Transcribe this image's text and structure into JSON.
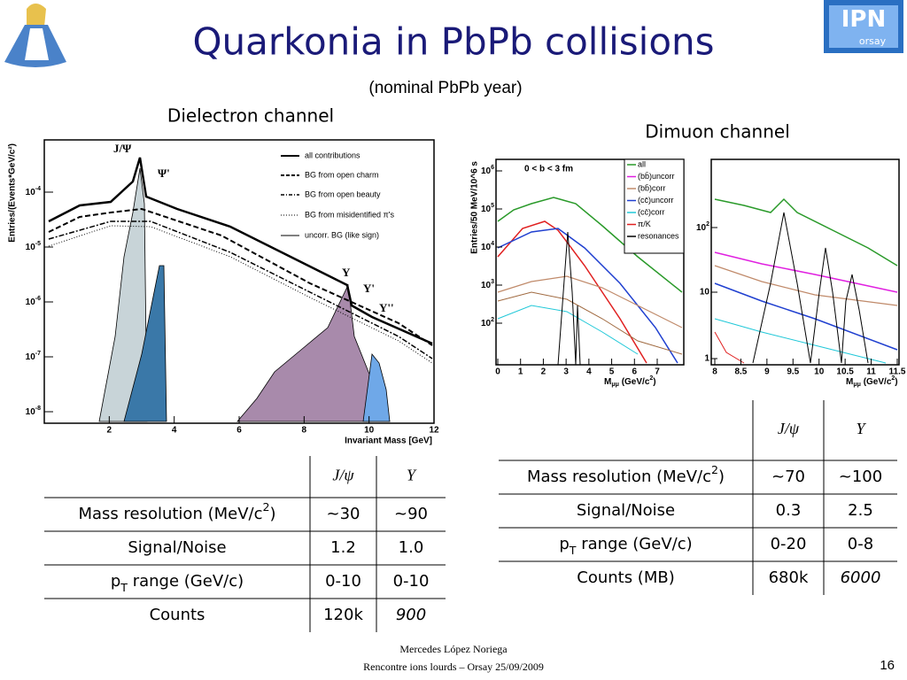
{
  "title": "Quarkonia in PbPb collisions",
  "subtitle": "(nominal PbPb year)",
  "logo": {
    "main": "IPN",
    "sub": "orsay"
  },
  "dielectron": {
    "label": "Dielectron channel",
    "plot": {
      "ylabel": "Entries/(Events*GeV/c²)",
      "xlabel": "Invariant Mass [GeV]",
      "xticks": [
        "2",
        "4",
        "6",
        "8",
        "10",
        "12"
      ],
      "yticks": [
        [
          {
            "text": "10"
          },
          {
            "text": "-8",
            "style": "sup"
          }
        ],
        [
          {
            "text": "10"
          },
          {
            "text": "-7",
            "style": "sup"
          }
        ],
        [
          {
            "text": "10"
          },
          {
            "text": "-6",
            "style": "sup"
          }
        ],
        [
          {
            "text": "10"
          },
          {
            "text": "-5",
            "style": "sup"
          }
        ],
        [
          {
            "text": "10"
          },
          {
            "text": "-4",
            "style": "sup"
          }
        ]
      ],
      "legend": [
        "all contributions",
        "BG from open charm",
        "BG from open beauty",
        "BG from misidentified π's",
        "uncorr. BG (like sign)"
      ],
      "peaks": [
        "J/Ψ",
        "Ψ'",
        "Υ",
        "Υ'",
        "Υ''"
      ]
    },
    "table": {
      "header": [
        "J/ψ",
        "Υ"
      ],
      "rows": [
        [
          [
            {
              "text": "Mass resolution (MeV/c"
            },
            {
              "text": "2",
              "style": "sup"
            },
            {
              "text": ")"
            }
          ],
          "~30",
          "~90"
        ],
        [
          "Signal/Noise",
          "1.2",
          "1.0"
        ],
        [
          [
            {
              "text": "p"
            },
            {
              "text": "T",
              "style": "sub"
            },
            {
              "text": " range (GeV/c)"
            }
          ],
          "0-10",
          "0-10"
        ],
        [
          "Counts",
          "120k",
          [
            {
              "text": "900",
              "style": "italic"
            }
          ]
        ]
      ]
    }
  },
  "dimuon": {
    "label": "Dimuon channel",
    "plot": {
      "ylabel": "Entries/50 MeV/10^6 s",
      "annotation": "0 < b <  3 fm",
      "xticks": [
        "0",
        "1",
        "2",
        "3",
        "4",
        "5",
        "6",
        "7"
      ],
      "yticks": [
        [
          {
            "text": "10"
          },
          {
            "text": "2",
            "style": "sup"
          }
        ],
        [
          {
            "text": "10"
          },
          {
            "text": "3",
            "style": "sup"
          }
        ],
        [
          {
            "text": "10"
          },
          {
            "text": "4",
            "style": "sup"
          }
        ],
        [
          {
            "text": "10"
          },
          {
            "text": "5",
            "style": "sup"
          }
        ],
        [
          {
            "text": "10"
          },
          {
            "text": "6",
            "style": "sup"
          }
        ]
      ],
      "xlabel": [
        {
          "text": "M"
        },
        {
          "text": "μμ",
          "style": "sub"
        },
        {
          "text": " (GeV/c"
        },
        {
          "text": "2",
          "style": "sup"
        },
        {
          "text": ")"
        }
      ],
      "legend": [
        "all",
        "(bb̄)uncorr",
        "(bb̄)corr",
        "(cc̄)uncorr",
        "(cc̄)corr",
        "π/K",
        "resonances"
      ]
    },
    "zoom": {
      "xticks": [
        "8",
        "8.5",
        "9",
        "9.5",
        "10",
        "10.5",
        "11",
        "11.5"
      ],
      "yticks": [
        "1",
        "10",
        [
          {
            "text": "10"
          },
          {
            "text": "2",
            "style": "sup"
          }
        ]
      ],
      "xlabel": [
        {
          "text": "M"
        },
        {
          "text": "μμ",
          "style": "sub"
        },
        {
          "text": " (GeV/c"
        },
        {
          "text": "2",
          "style": "sup"
        },
        {
          "text": ")"
        }
      ]
    },
    "table": {
      "header": [
        "J/ψ",
        "Υ"
      ],
      "rows": [
        [
          [
            {
              "text": "Mass resolution (MeV/c"
            },
            {
              "text": "2",
              "style": "sup"
            },
            {
              "text": ")"
            }
          ],
          "~70",
          "~100"
        ],
        [
          "Signal/Noise",
          "0.3",
          "2.5"
        ],
        [
          [
            {
              "text": "p"
            },
            {
              "text": "T",
              "style": "sub"
            },
            {
              "text": " range (GeV/c)"
            }
          ],
          "0-20",
          "0-8"
        ],
        [
          "Counts (MB)",
          "680k",
          [
            {
              "text": "6000",
              "style": "italic"
            }
          ]
        ]
      ]
    }
  },
  "footer": {
    "author": "Mercedes López Noriega",
    "event": "Rencontre ions lourds – Orsay 25/09/2009",
    "page": "16"
  }
}
